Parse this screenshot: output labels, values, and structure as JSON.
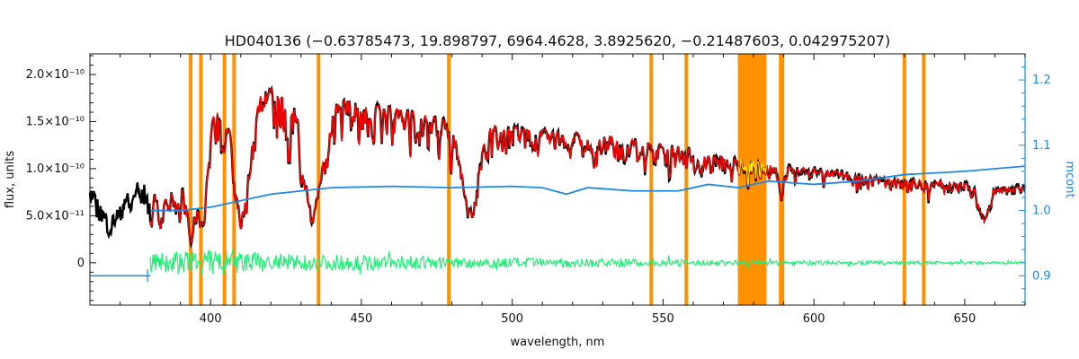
{
  "chart_data": {
    "type": "line",
    "title": "HD040136    (−0.63785473, 19.898797, 6964.4628, 3.8925620, −0.21487603, 0.042975207)",
    "xlabel": "wavelength, nm",
    "ylabel": "flux, units",
    "y2label": "mcont",
    "xlim": [
      360,
      670
    ],
    "ylim": [
      -4.5e-11,
      2.22e-10
    ],
    "y2lim": [
      0.855,
      1.24
    ],
    "x_ticks": [
      400,
      450,
      500,
      550,
      600,
      650
    ],
    "x_tick_labels": [
      "400",
      "450",
      "500",
      "550",
      "600",
      "650"
    ],
    "y_ticks": [
      0,
      5e-11,
      1e-10,
      1.5e-10,
      2e-10
    ],
    "y_tick_labels": [
      "0",
      "5.0×10⁻¹¹",
      "1.0×10⁻¹⁰",
      "1.5×10⁻¹⁰",
      "2.0×10⁻¹⁰"
    ],
    "y2_ticks": [
      0.9,
      1.0,
      1.1,
      1.2
    ],
    "y2_tick_labels": [
      "0.9",
      "1.0",
      "1.1",
      "1.2"
    ],
    "masked_lines_nm": [
      393.4,
      396.8,
      404.6,
      407.8,
      435.8,
      479.0,
      546.1,
      557.7,
      589.0,
      589.6,
      630.0,
      636.4
    ],
    "masked_bands_nm": [
      [
        574.8,
        584.3
      ]
    ],
    "series": [
      {
        "role": "observed",
        "color": "#000000",
        "continuum": [
          [
            360,
            8.8e-11
          ],
          [
            370,
            9.5e-11
          ],
          [
            380,
            1.3e-10
          ],
          [
            385,
            1.55e-10
          ],
          [
            392,
            1.74e-10
          ],
          [
            400,
            1.84e-10
          ],
          [
            410,
            1.86e-10
          ],
          [
            420,
            1.84e-10
          ],
          [
            440,
            1.76e-10
          ],
          [
            460,
            1.64e-10
          ],
          [
            480,
            1.5e-10
          ],
          [
            500,
            1.44e-10
          ],
          [
            520,
            1.38e-10
          ],
          [
            540,
            1.3e-10
          ],
          [
            560,
            1.2e-10
          ],
          [
            580,
            1.06e-10
          ],
          [
            600,
            1e-10
          ],
          [
            620,
            9.2e-11
          ],
          [
            640,
            8.7e-11
          ],
          [
            655,
            8.3e-11
          ],
          [
            670,
            8e-11
          ]
        ],
        "absorption_lines": [
          [
            364.0,
            0.4,
            3.0
          ],
          [
            367.0,
            0.45,
            1.5
          ],
          [
            370.0,
            0.4,
            1.2
          ],
          [
            373.5,
            0.45,
            1.4
          ],
          [
            377.0,
            0.4,
            1.2
          ],
          [
            379.8,
            0.5,
            1.2
          ],
          [
            383.5,
            0.6,
            2.0
          ],
          [
            388.9,
            0.62,
            2.5
          ],
          [
            393.4,
            0.75,
            1.2
          ],
          [
            396.9,
            0.75,
            2.2
          ],
          [
            410.2,
            0.72,
            2.6
          ],
          [
            434.0,
            0.68,
            3.0
          ],
          [
            486.1,
            0.62,
            2.6
          ],
          [
            656.3,
            0.42,
            1.6
          ],
          [
            589.3,
            0.35,
            0.5
          ],
          [
            518.4,
            0.1,
            1.0
          ],
          [
            527.0,
            0.07,
            0.8
          ],
          [
            430.8,
            0.18,
            0.7
          ],
          [
            438.4,
            0.12,
            0.6
          ],
          [
            404.6,
            0.15,
            0.6
          ],
          [
            526.9,
            0.08,
            0.5
          ]
        ]
      },
      {
        "role": "model",
        "color": "#ff0000",
        "x_range": [
          380,
          670
        ]
      },
      {
        "role": "masked-segment",
        "color": "#ffee00",
        "x_range": [
          574.8,
          584.3
        ]
      },
      {
        "name": "mcont",
        "axis": "right",
        "color": "#1e88e5",
        "points": [
          [
            380,
            1.0
          ],
          [
            390,
            1.0
          ],
          [
            400,
            1.005
          ],
          [
            410,
            1.015
          ],
          [
            420,
            1.025
          ],
          [
            440,
            1.035
          ],
          [
            460,
            1.037
          ],
          [
            480,
            1.035
          ],
          [
            500,
            1.037
          ],
          [
            510,
            1.035
          ],
          [
            518,
            1.025
          ],
          [
            525,
            1.035
          ],
          [
            540,
            1.03
          ],
          [
            555,
            1.03
          ],
          [
            565,
            1.04
          ],
          [
            575,
            1.035
          ],
          [
            585,
            1.045
          ],
          [
            600,
            1.04
          ],
          [
            615,
            1.045
          ],
          [
            630,
            1.055
          ],
          [
            650,
            1.06
          ],
          [
            670,
            1.068
          ]
        ],
        "extension": [
          [
            360,
            0.9
          ],
          [
            380,
            0.9
          ]
        ]
      },
      {
        "role": "residuals",
        "color": "#22ee77",
        "x_range": [
          380,
          670
        ],
        "noise_amplitude": [
          [
            380,
            1.1e-11
          ],
          [
            400,
            1.4e-11
          ],
          [
            430,
            9e-12
          ],
          [
            470,
            7e-12
          ],
          [
            520,
            5e-12
          ],
          [
            570,
            3e-12
          ],
          [
            620,
            2e-12
          ],
          [
            670,
            1.5e-12
          ]
        ]
      }
    ],
    "grid": false
  }
}
